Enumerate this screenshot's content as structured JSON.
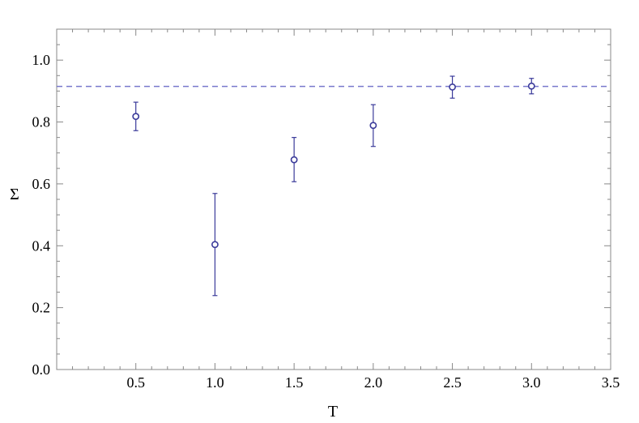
{
  "chart_data": {
    "type": "scatter",
    "xlabel": "T",
    "ylabel": "Σ",
    "xlim": [
      0,
      3.5
    ],
    "ylim": [
      0,
      1.1
    ],
    "x_ticks": [
      "0.5",
      "1.0",
      "1.5",
      "2.0",
      "2.5",
      "3.0",
      "3.5"
    ],
    "y_ticks": [
      "0.0",
      "0.2",
      "0.4",
      "0.6",
      "0.8",
      "1.0"
    ],
    "grid": false,
    "series": [
      {
        "marker": "open-circle",
        "error_bars": true,
        "points": [
          {
            "x": 0.5,
            "y": 0.818,
            "y_low": 0.772,
            "y_high": 0.864
          },
          {
            "x": 1.0,
            "y": 0.404,
            "y_low": 0.239,
            "y_high": 0.569
          },
          {
            "x": 1.5,
            "y": 0.678,
            "y_low": 0.607,
            "y_high": 0.75
          },
          {
            "x": 2.0,
            "y": 0.789,
            "y_low": 0.721,
            "y_high": 0.856
          },
          {
            "x": 2.5,
            "y": 0.913,
            "y_low": 0.877,
            "y_high": 0.948
          },
          {
            "x": 3.0,
            "y": 0.916,
            "y_low": 0.891,
            "y_high": 0.941
          }
        ]
      }
    ],
    "reference_line": {
      "y": 0.915,
      "style": "dashed"
    },
    "colors": {
      "series": "#3a3a9a",
      "reference": "#7878cc",
      "frame": "#888888"
    }
  }
}
